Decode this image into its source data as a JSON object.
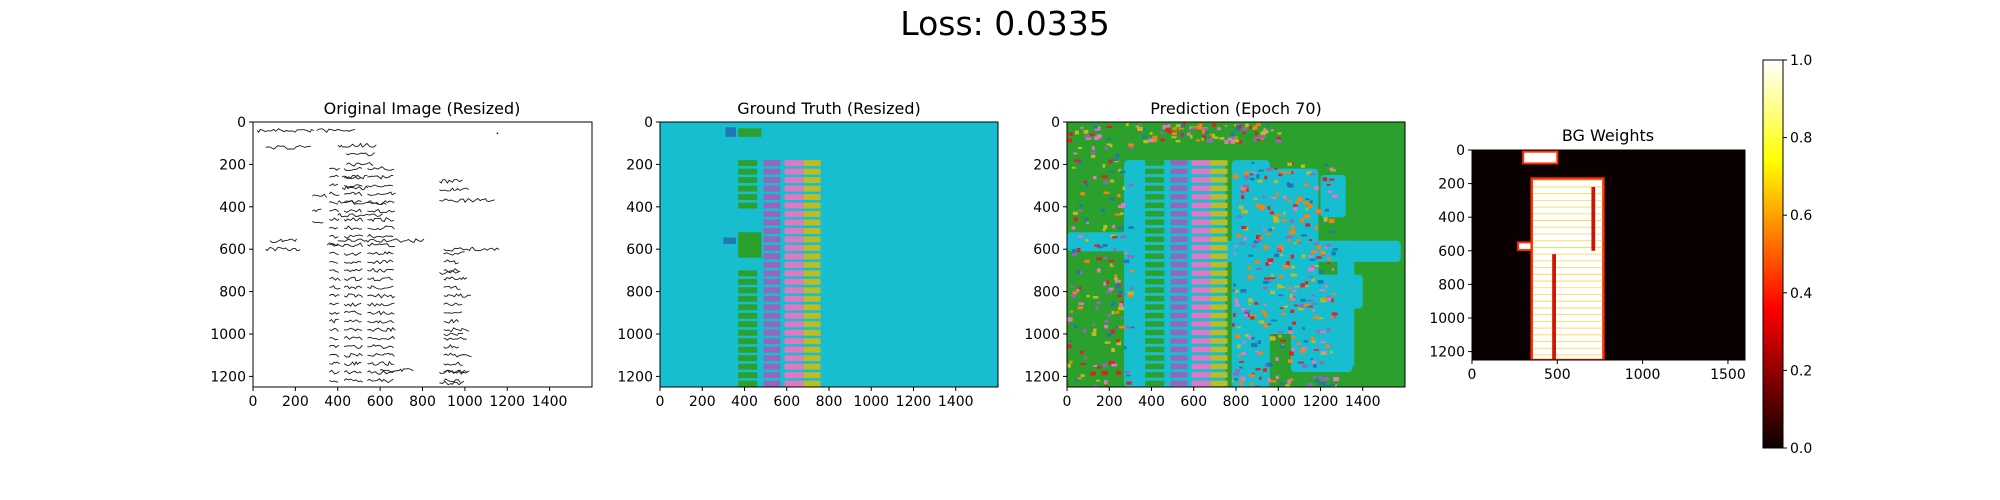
{
  "figure": {
    "suptitle": "Loss: 0.0335"
  },
  "chart_data": [
    {
      "type": "heatmap",
      "title": "Original Image (Resized)",
      "content": "grayscale scanned handwritten ledger page",
      "xlim": [
        0,
        1600
      ],
      "ylim": [
        1250,
        0
      ],
      "xticks": [
        0,
        200,
        400,
        600,
        800,
        1000,
        1200,
        1400
      ],
      "yticks": [
        0,
        200,
        400,
        600,
        800,
        1000,
        1200
      ]
    },
    {
      "type": "heatmap",
      "title": "Ground Truth (Resized)",
      "content": "categorical segmentation mask",
      "background_color": "#17becf",
      "class_colors": [
        "#2ca02c",
        "#9467bd",
        "#e377c2",
        "#bcbd22",
        "#1f77b4"
      ],
      "xlim": [
        0,
        1600
      ],
      "ylim": [
        1250,
        0
      ],
      "xticks": [
        0,
        200,
        400,
        600,
        800,
        1000,
        1200,
        1400
      ],
      "yticks": [
        0,
        200,
        400,
        600,
        800,
        1000,
        1200
      ]
    },
    {
      "type": "heatmap",
      "title": "Prediction (Epoch 70)",
      "content": "predicted categorical segmentation mask",
      "class_colors": [
        "#2ca02c",
        "#17becf",
        "#9467bd",
        "#e377c2",
        "#bcbd22",
        "#1f77b4",
        "#ff7f0e",
        "#d62728"
      ],
      "xlim": [
        0,
        1600
      ],
      "ylim": [
        1250,
        0
      ],
      "xticks": [
        0,
        200,
        400,
        600,
        800,
        1000,
        1200,
        1400
      ],
      "yticks": [
        0,
        200,
        400,
        600,
        800,
        1000,
        1200
      ]
    },
    {
      "type": "heatmap",
      "title": "BG Weights",
      "colormap": "hot",
      "xlim": [
        0,
        1600
      ],
      "ylim": [
        1250,
        0
      ],
      "xticks": [
        0,
        500,
        1000,
        1500
      ],
      "yticks": [
        0,
        200,
        400,
        600,
        800,
        1000,
        1200
      ],
      "colorbar": {
        "range": [
          0.0,
          1.0
        ],
        "ticks": [
          "0.0",
          "0.2",
          "0.4",
          "0.6",
          "0.8",
          "1.0"
        ]
      }
    }
  ]
}
